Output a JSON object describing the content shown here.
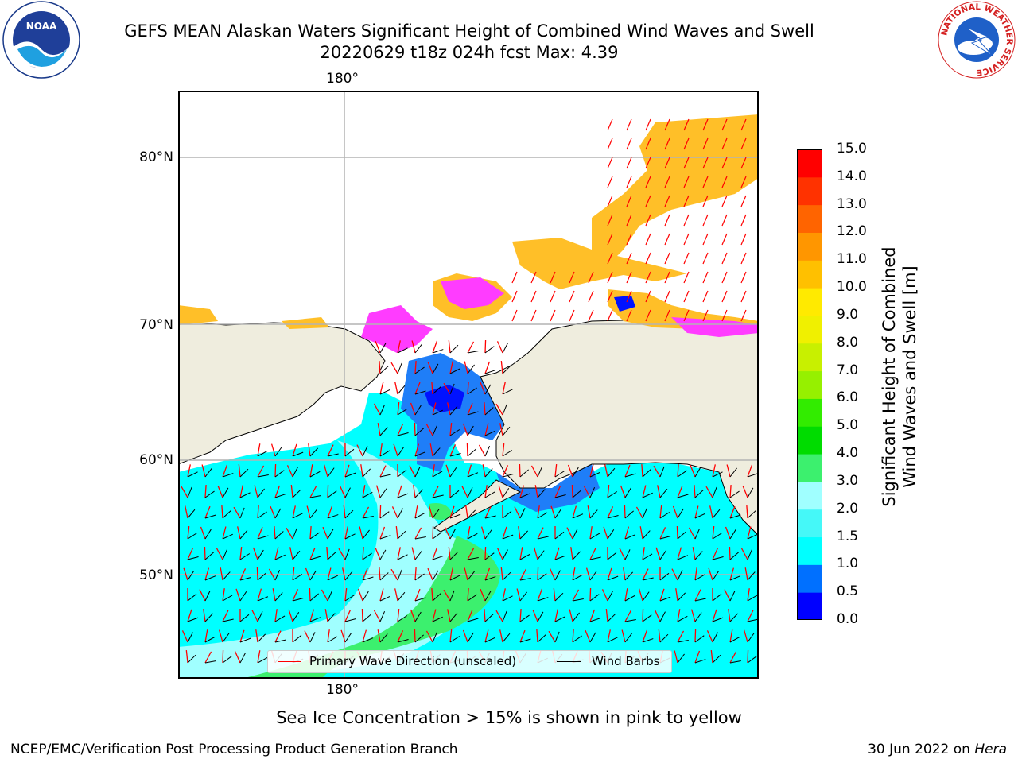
{
  "header": {
    "title_line1": "GEFS MEAN Alaskan Waters Significant Height of Combined Wind Waves and Swell",
    "title_line2": "20220629 t18z 024h fcst   Max: 4.39",
    "left_logo": {
      "name": "noaa-logo",
      "text": "NOAA"
    },
    "right_logo": {
      "name": "nws-logo",
      "ring_text": "NATIONAL WEATHER SERVICE"
    }
  },
  "map": {
    "lon_label_top": "180°",
    "lon_label_bottom": "180°",
    "lat_labels": [
      "80°N",
      "70°N",
      "60°N",
      "50°N"
    ],
    "colors": {
      "land": "#efedde",
      "ocean_base": "#00ffff",
      "ocean_light": "#a0ffff",
      "ocean_mid": "#45f8f8",
      "green": "#3cf06e",
      "blue": "#1f7ef8",
      "deep_blue": "#0012ff",
      "ice_pink": "#ff3cff",
      "ice_orange": "#ffbf28",
      "ice_yellow": "#ffd040",
      "wave_arrow": "#ff0000",
      "wind_barb": "#000000",
      "grid": "#b4b4b4"
    }
  },
  "legend": {
    "primary_wave_label": "Primary Wave Direction (unscaled)",
    "wind_barbs_label": "Wind Barbs"
  },
  "colorbar": {
    "title": "Significant Height of Combined\nWind Waves and Swell [m]",
    "ticks": [
      "0.0",
      "0.5",
      "1.0",
      "1.5",
      "2.0",
      "3.0",
      "4.0",
      "5.0",
      "6.0",
      "7.0",
      "8.0",
      "9.0",
      "10.0",
      "11.0",
      "12.0",
      "13.0",
      "14.0",
      "15.0"
    ],
    "colors": [
      "#0000ff",
      "#0070ff",
      "#00ffff",
      "#45f8f8",
      "#a0ffff",
      "#3cf06e",
      "#00dc00",
      "#32ec00",
      "#96f000",
      "#c8f000",
      "#f0f000",
      "#ffea00",
      "#ffc000",
      "#ff9600",
      "#ff6400",
      "#ff3200",
      "#ff0000"
    ]
  },
  "caption": "Sea Ice Concentration > 15% is shown in pink to yellow",
  "footer": {
    "left": "NCEP/EMC/Verification Post Processing Product Generation Branch",
    "right_prefix": "30 Jun 2022 on ",
    "right_machine": "Hera"
  }
}
